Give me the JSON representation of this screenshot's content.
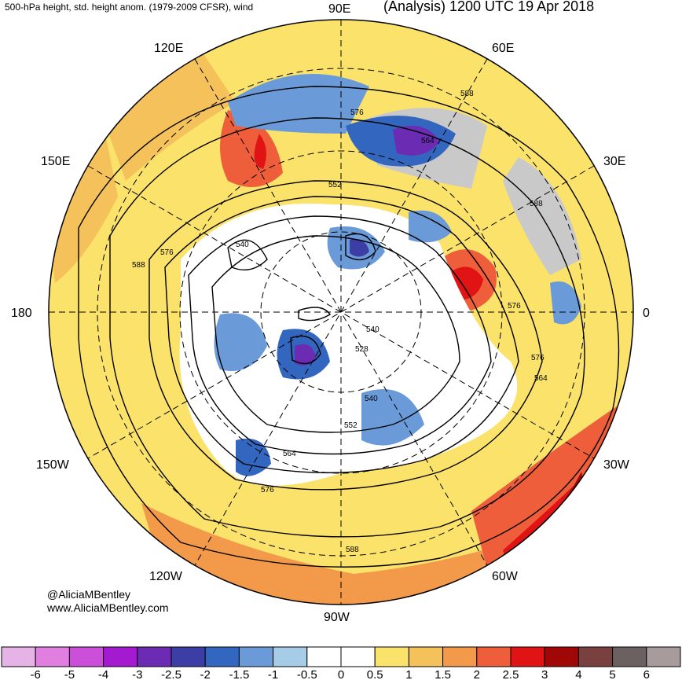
{
  "header": {
    "left_title": "500-hPa height, std. height anom. (1979-2009 CFSR), wind",
    "right_title": "(Analysis) 1200 UTC 19 Apr 2018"
  },
  "credits": {
    "twitter": "@AliciaMBentley",
    "website": "www.AliciaMBentley.com"
  },
  "longitude_labels": {
    "lon_90e": "90E",
    "lon_120e": "120E",
    "lon_60e": "60E",
    "lon_150e": "150E",
    "lon_30e": "30E",
    "lon_180": "180",
    "lon_0": "0",
    "lon_150w": "150W",
    "lon_30w": "30W",
    "lon_120w": "120W",
    "lon_60w": "60W",
    "lon_90w": "90W"
  },
  "contour_labels": [
    "588",
    "576",
    "564",
    "552",
    "540",
    "528",
    "576",
    "588",
    "576",
    "564",
    "540",
    "552",
    "564",
    "576",
    "588",
    "540",
    "588",
    "576"
  ],
  "colorbar": {
    "ticks": [
      "-6",
      "-5",
      "-4",
      "-3",
      "-2.5",
      "-2",
      "-1.5",
      "-1",
      "-0.5",
      "0",
      "0.5",
      "1",
      "1.5",
      "2",
      "2.5",
      "3",
      "4",
      "5",
      "6"
    ],
    "colors": [
      "#e5b3e5",
      "#e07fe0",
      "#cc4fd9",
      "#a31ad1",
      "#6b2bb3",
      "#3d3da6",
      "#3366bf",
      "#6b9ad9",
      "#a6cce8",
      "#ffffff",
      "#ffffff",
      "#fbe36b",
      "#f5c15a",
      "#f29a4a",
      "#ee5e3a",
      "#e01414",
      "#a00808",
      "#7a3f3f",
      "#6b6161",
      "#a89b9b"
    ]
  },
  "legend_colors": {
    "land_shade": "#c9c9c9",
    "contour": "#000000"
  }
}
